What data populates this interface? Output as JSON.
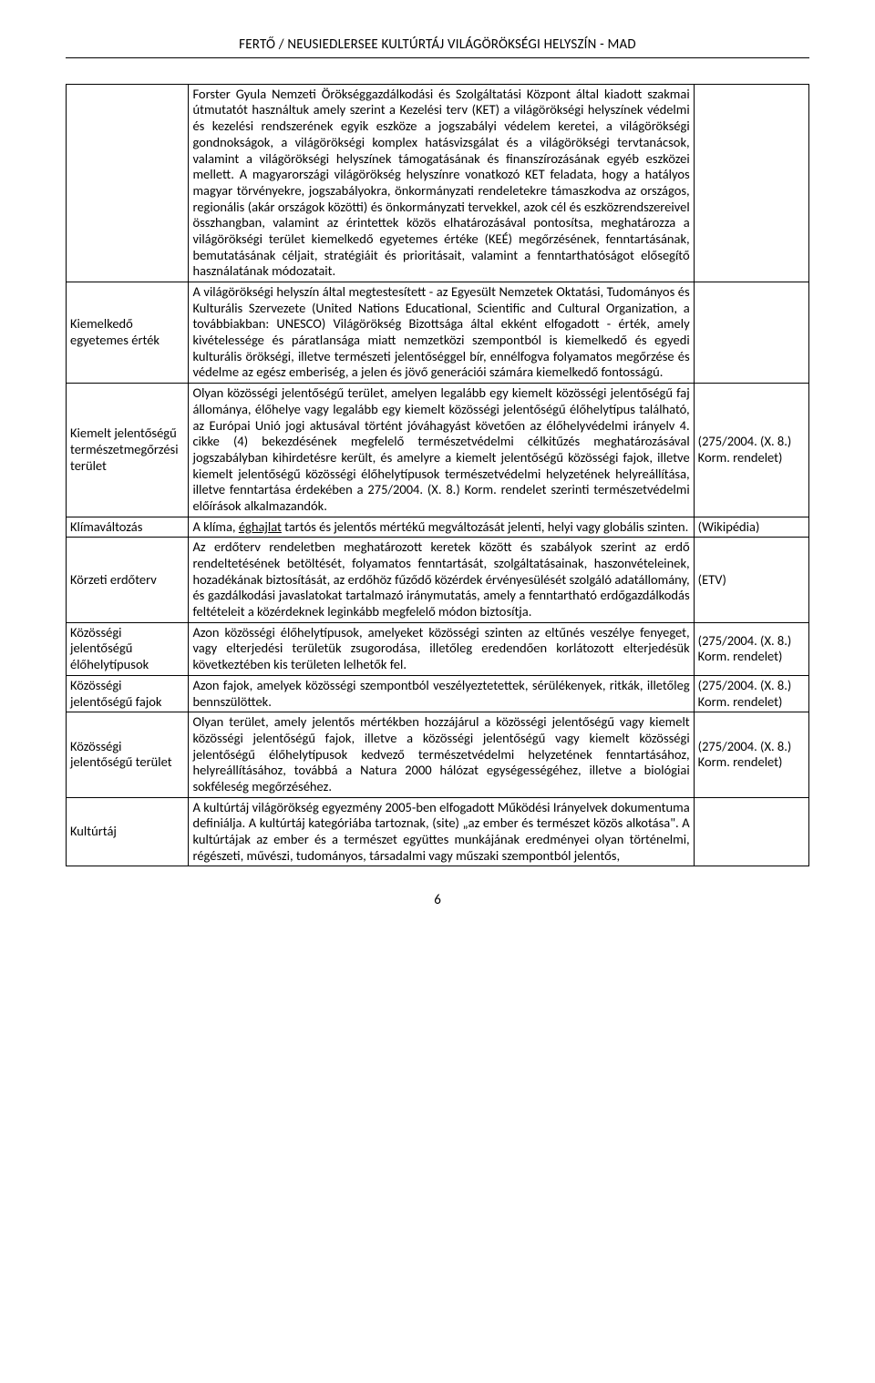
{
  "header": "FERTŐ / NEUSIEDLERSEE KULTÚRTÁJ VILÁGÖRÖKSÉGI HELYSZÍN - MAD",
  "pageNumber": "6",
  "rows": [
    {
      "term": "",
      "definition": "Forster Gyula Nemzeti Örökséggazdálkodási és Szolgáltatási Központ által kiadott szakmai útmutatót  használtuk amely szerint a Kezelési terv (KET) a világörökségi helyszínek védelmi és kezelési rendszerének egyik eszköze a jogszabályi védelem keretei, a világörökségi gondnokságok, a világörökségi komplex hatásvizsgálat és a világörökségi tervtanácsok, valamint a világörökségi helyszínek támogatásának és finanszírozásának egyéb eszközei mellett. A magyarországi világörökség helyszínre vonatkozó KET feladata, hogy a hatályos magyar törvényekre, jogszabályokra, önkormányzati rendeletekre támaszkodva az országos, regionális (akár országok közötti) és önkormányzati tervekkel, azok cél és eszközrendszereivel összhangban, valamint az érintettek közös elhatározásával pontosítsa, meghatározza a világörökségi terület kiemelkedő egyetemes értéke (KEÉ) megőrzésének, fenntartásának, bemutatásának céljait, stratégiáit és prioritásait, valamint a fenntarthatóságot elősegítő használatának módozatait.",
      "source": ""
    },
    {
      "term": "Kiemelkedő egyetemes érték",
      "definition": "A világörökségi helyszín által megtestesített - az Egyesült Nemzetek Oktatási, Tudományos és Kulturális Szervezete (United Nations Educational, Scientific and Cultural Organization, a továbbiakban: UNESCO) Világörökség Bizottsága által ekként elfogadott - érték, amely kivételessége és páratlansága miatt nemzetközi szempontból is kiemelkedő és egyedi kulturális örökségi, illetve természeti jelentőséggel bír, ennélfogva folyamatos megőrzése és védelme az egész emberiség, a jelen és jövő generációi számára kiemelkedő fontosságú.",
      "source": ""
    },
    {
      "term": "Kiemelt jelentőségű természetmegőrzési terület",
      "definition": "Olyan közösségi jelentőségű terület, amelyen legalább egy kiemelt közösségi jelentőségű faj állománya, élőhelye vagy legalább egy kiemelt közösségi jelentőségű élőhelytípus található, az Európai Unió jogi aktusával történt jóváhagyást követően az élőhelyvédelmi irányelv 4. cikke (4) bekezdésének megfelelő természetvédelmi célkitűzés meghatározásával jogszabályban kihirdetésre került, és amelyre a kiemelt jelentőségű közösségi fajok, illetve kiemelt jelentőségű közösségi élőhelytípusok természetvédelmi helyzetének helyreállítása, illetve fenntartása érdekében a 275/2004. (X. 8.) Korm. rendelet szerinti természetvédelmi előírások alkalmazandók.",
      "source": "(275/2004. (X. 8.) Korm. rendelet)"
    },
    {
      "term": "Klímaváltozás",
      "definition_html": "A klíma, <span class=\"underline-word\">éghajlat</span> tartós és jelentős mértékű megváltozását jelenti, helyi vagy globális szinten.",
      "source": "(Wikipédia)"
    },
    {
      "term": "Körzeti erdőterv",
      "definition": "Az erdőterv rendeletben meghatározott keretek között és szabályok szerint az erdő rendeltetésének betöltését, folyamatos fenntartását, szolgáltatásainak, haszonvételeinek, hozadékának biztosítását, az erdőhöz fűződő közérdek érvényesülését szolgáló adatállomány, és gazdálkodási javaslatokat tartalmazó iránymutatás, amely a fenntartható erdőgazdálkodás feltételeit a közérdeknek leginkább megfelelő módon biztosítja.",
      "source": "(ETV)"
    },
    {
      "term": "Közösségi jelentőségű élőhelytípusok",
      "definition": "Azon közösségi élőhelytípusok, amelyeket közösségi szinten az eltűnés veszélye fenyeget, vagy elterjedési területük zsugorodása, illetőleg eredendően korlátozott elterjedésük következtében kis területen lelhetők fel.",
      "source": "(275/2004. (X. 8.) Korm. rendelet)"
    },
    {
      "term": "Közösségi jelentőségű fajok",
      "definition": "Azon fajok, amelyek közösségi szempontból veszélyeztetettek, sérülékenyek, ritkák, illetőleg bennszülöttek.",
      "source": "(275/2004. (X. 8.) Korm. rendelet)"
    },
    {
      "term": "Közösségi jelentőségű terület",
      "definition": "Olyan terület, amely jelentős mértékben hozzájárul a közösségi jelentőségű vagy kiemelt közösségi jelentőségű fajok, illetve a közösségi jelentőségű vagy kiemelt közösségi jelentőségű élőhelytípusok kedvező természetvédelmi helyzetének fenntartásához, helyreállításához, továbbá a Natura 2000 hálózat egységességéhez, illetve a biológiai sokféleség megőrzéséhez.",
      "source": "(275/2004. (X. 8.) Korm. rendelet)"
    },
    {
      "term": "Kultúrtáj",
      "definition": "A kultúrtáj világörökség egyezmény 2005-ben elfogadott Működési Irányelvek dokumentuma definiálja. A kultúrtáj kategóriába tartoznak, (site) „az ember és természet közös alkotása\". A kultúrtájak az ember és a természet együttes munkájának eredményei olyan történelmi, régészeti, művészi, tudományos, társadalmi vagy műszaki szempontból jelentős,",
      "source": ""
    }
  ]
}
